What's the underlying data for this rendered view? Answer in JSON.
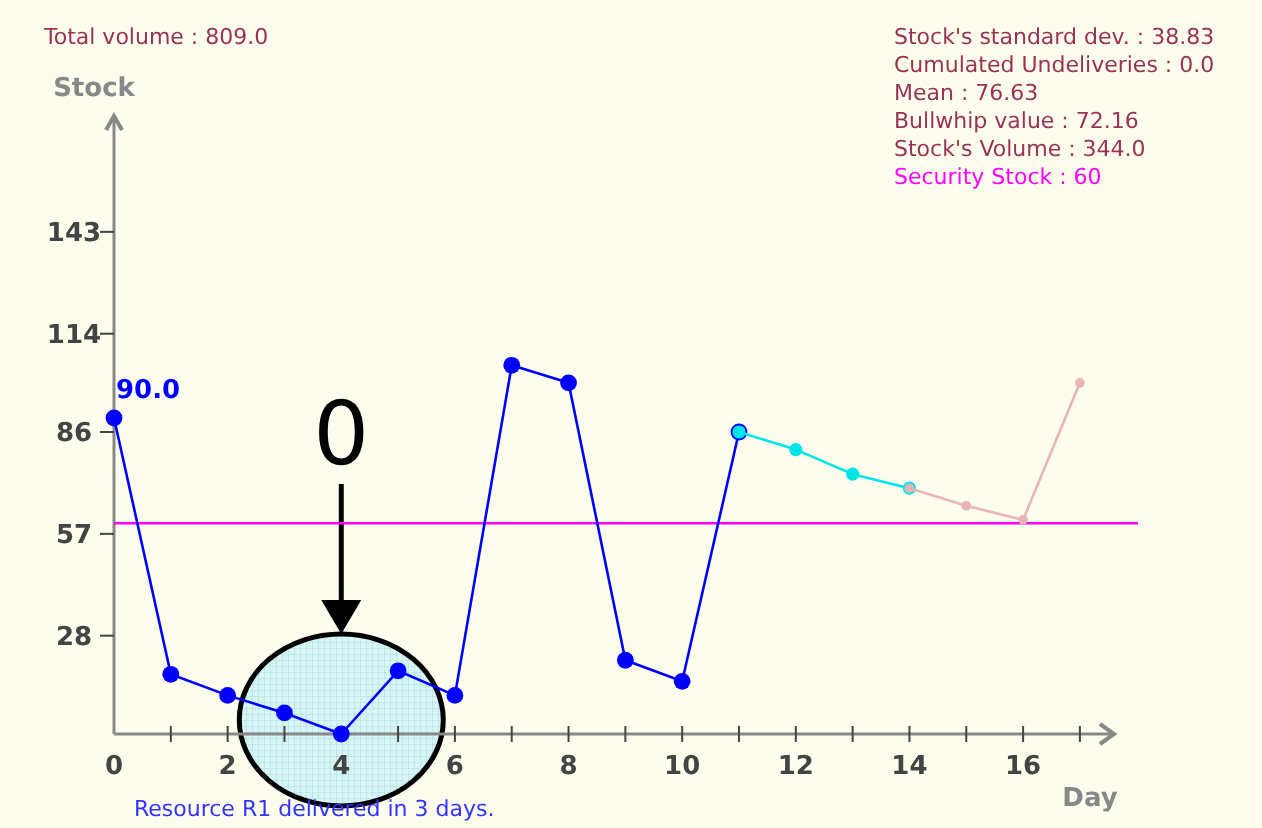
{
  "chart_data": {
    "type": "line",
    "xlabel": "Day",
    "ylabel": "Stock",
    "xlim": [
      0,
      17.6
    ],
    "ylim": [
      0,
      176
    ],
    "xticks": [
      0,
      {
        "value": 1,
        "label": null
      },
      2,
      {
        "value": 3,
        "label": null
      },
      4,
      {
        "value": 5,
        "label": null
      },
      6,
      {
        "value": 7,
        "label": null
      },
      8,
      {
        "value": 9,
        "label": null
      },
      10,
      {
        "value": 11,
        "label": null
      },
      12,
      {
        "value": 13,
        "label": null
      },
      14,
      {
        "value": 15,
        "label": null
      },
      16,
      {
        "value": 17,
        "label": null
      }
    ],
    "yticks": [
      28,
      57,
      86,
      114,
      143
    ],
    "grid": false,
    "marker": "circle",
    "line_style": "solid",
    "series": [
      {
        "color": "#0000ff",
        "x": [
          0,
          1,
          2,
          3,
          4,
          5,
          6,
          7,
          8,
          9,
          10,
          11
        ],
        "values": [
          90,
          17,
          11,
          6,
          0,
          18,
          11,
          105,
          100,
          21,
          15,
          86
        ]
      },
      {
        "color": "#00e5e5",
        "x": [
          11,
          12,
          13,
          14
        ],
        "values": [
          86,
          81,
          74,
          70
        ]
      },
      {
        "color": "#e8b4b4",
        "x": [
          14,
          15,
          16,
          17
        ],
        "values": [
          70,
          65,
          61,
          100
        ]
      }
    ],
    "ref_lines": [
      {
        "axis": "y",
        "value": 60,
        "label": "Security Stock : 60",
        "color": "#ff00ff"
      }
    ],
    "annotations": [
      "Total volume : 809.0",
      "Stock's standard dev. : 38.83",
      "Cumulated Undeliveries : 0.0",
      "Mean : 76.63",
      "Bullwhip value : 72.16",
      "Stock's Volume : 344.0",
      "Resource R1 delivered in 3 days.",
      {
        "text": "90.0",
        "x": 0,
        "y": 90
      },
      {
        "text": "0",
        "x": 4,
        "y": 0
      }
    ]
  }
}
